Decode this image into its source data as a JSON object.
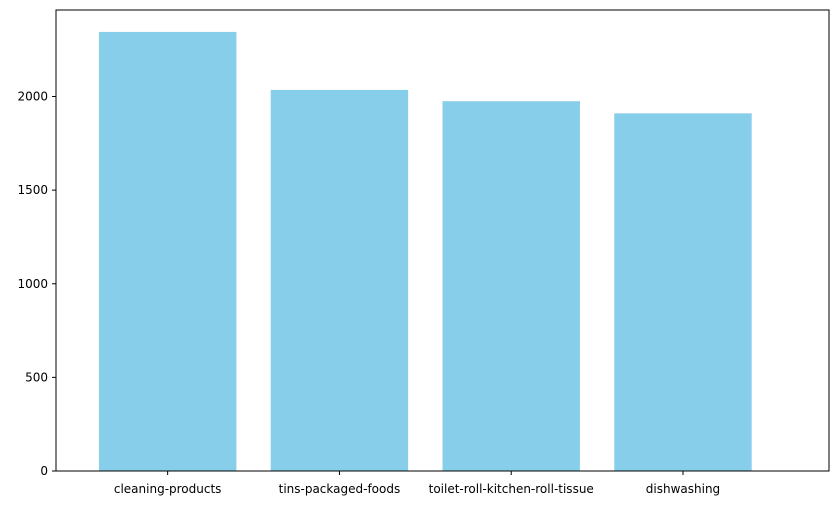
{
  "chart_data": {
    "type": "bar",
    "title": "",
    "xlabel": "",
    "ylabel": "",
    "categories": [
      "cleaning-products",
      "tins-packaged-foods",
      "toilet-roll-kitchen-roll-tissue",
      "dishwashing"
    ],
    "values": [
      2345,
      2035,
      1975,
      1910
    ],
    "ylim": [
      0,
      2462
    ],
    "yticks": [
      0,
      500,
      1000,
      1500,
      2000
    ],
    "ytick_labels": [
      "0",
      "500",
      "1000",
      "1500",
      "2000"
    ],
    "grid": false,
    "legend": "none",
    "colors": {
      "bar": "#87ceeb",
      "axis": "#000000",
      "background": "#ffffff"
    }
  }
}
